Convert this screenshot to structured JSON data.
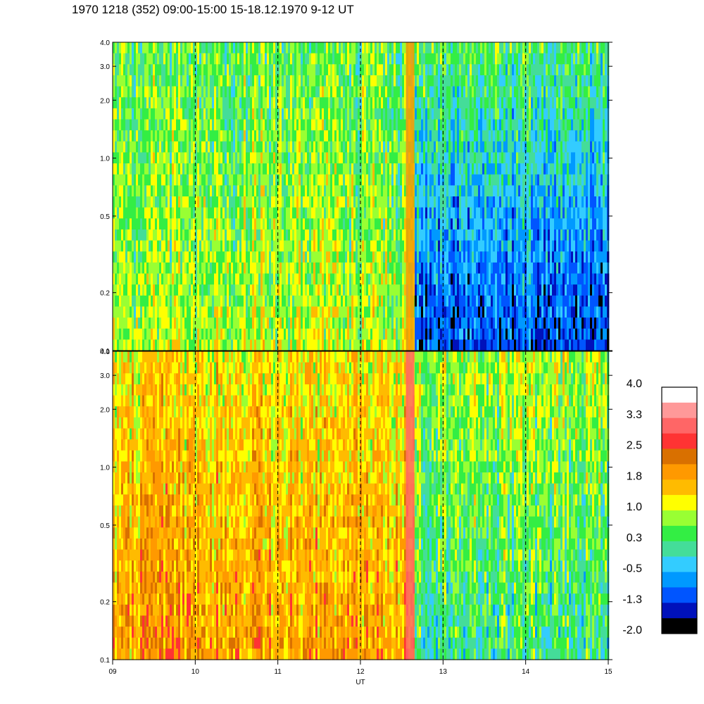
{
  "title": "1970 1218 (352) 09:00-15:00 15-18.12.1970  9-12 UT",
  "chart_data": {
    "type": "heatmap",
    "title": "1970 1218 (352) 09:00-15:00 15-18.12.1970  9-12 UT",
    "xlabel": "UT",
    "ylabel": "",
    "x_range": [
      9,
      15
    ],
    "x_ticks": [
      "09",
      "10",
      "11",
      "12",
      "13",
      "14",
      "15"
    ],
    "x_dashed_gridlines": [
      10,
      11,
      12,
      13,
      14
    ],
    "y_scale": "log",
    "y_range": [
      0.1,
      4.0
    ],
    "y_ticks": [
      "0.1",
      "0.2",
      "0.5",
      "1.0",
      "2.0",
      "3.0",
      "4.0"
    ],
    "y_tick_values": [
      0.1,
      0.2,
      0.5,
      1.0,
      2.0,
      3.0,
      4.0
    ],
    "panels": [
      {
        "name": "upper panel",
        "regimes": [
          {
            "x": [
              9.0,
              12.65
            ],
            "level_low_freq": 0.9,
            "level_high_freq": 0.5
          },
          {
            "x": [
              12.65,
              15.0
            ],
            "level_low_freq": -1.2,
            "level_high_freq": 0.4
          }
        ]
      },
      {
        "name": "lower panel",
        "regimes": [
          {
            "x": [
              9.0,
              12.65
            ],
            "level_low_freq": 1.9,
            "level_high_freq": 1.3
          },
          {
            "x": [
              12.65,
              15.0
            ],
            "level_low_freq": 0.2,
            "level_high_freq": 0.9
          }
        ]
      }
    ],
    "colorbar": {
      "labels": [
        "4.0",
        "3.3",
        "2.5",
        "1.8",
        "1.0",
        "0.3",
        "-0.5",
        "-1.3",
        "-2.0"
      ],
      "colors": [
        "#ffffff",
        "#ff9999",
        "#ff6666",
        "#ff3333",
        "#d97000",
        "#ff9900",
        "#ffbb00",
        "#ffff00",
        "#99ff33",
        "#33ee44",
        "#44dd99",
        "#33ccff",
        "#0099ff",
        "#0055ff",
        "#0011bb",
        "#000000"
      ]
    }
  }
}
